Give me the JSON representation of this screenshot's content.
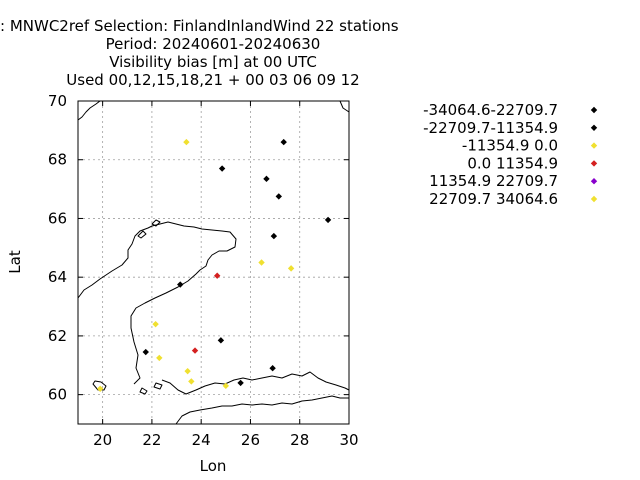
{
  "title_lines": [
    ": MNWC2ref   Selection: FinlandInlandWind      22 stations",
    "Period: 20240601-20240630",
    "Visibility bias [m] at  00 UTC",
    "Used 00,12,15,18,21 + 00 03 06 09 12"
  ],
  "chart_data": {
    "type": "scatter",
    "xlabel": "Lon",
    "ylabel": "Lat",
    "xlim": [
      19,
      30
    ],
    "ylim": [
      59,
      70
    ],
    "xticks": [
      "20",
      "22",
      "24",
      "26",
      "28",
      "30"
    ],
    "xtick_values": [
      20,
      22,
      24,
      26,
      28,
      30
    ],
    "yticks": [
      "60",
      "62",
      "64",
      "66",
      "68",
      "70"
    ],
    "ytick_values": [
      60,
      62,
      64,
      66,
      68,
      70
    ],
    "grid": true,
    "legend_position": "right",
    "series": [
      {
        "name": "-34064.6-22709.7",
        "color": "#000000",
        "points": []
      },
      {
        "name": "-22709.7-11354.9",
        "color": "#000000",
        "points": [
          [
            27.35,
            68.6
          ],
          [
            24.85,
            67.7
          ],
          [
            26.65,
            67.35
          ],
          [
            27.15,
            66.75
          ],
          [
            29.15,
            65.95
          ],
          [
            26.95,
            65.4
          ],
          [
            23.15,
            63.75
          ],
          [
            21.75,
            61.45
          ],
          [
            24.8,
            61.85
          ],
          [
            26.9,
            60.9
          ],
          [
            25.6,
            60.4
          ]
        ]
      },
      {
        "name": "-11354.9 0.0",
        "color": "#f0e030",
        "points": [
          [
            23.4,
            68.6
          ],
          [
            26.45,
            64.5
          ],
          [
            27.65,
            64.3
          ],
          [
            22.15,
            62.4
          ],
          [
            22.3,
            61.25
          ],
          [
            23.45,
            60.8
          ],
          [
            23.6,
            60.45
          ],
          [
            25.0,
            60.3
          ],
          [
            19.9,
            60.2
          ]
        ]
      },
      {
        "name": "0.0 11354.9",
        "color": "#d42020",
        "points": [
          [
            24.65,
            64.05
          ],
          [
            23.75,
            61.5
          ]
        ]
      },
      {
        "name": "11354.9 22709.7",
        "color": "#8800cc",
        "points": []
      },
      {
        "name": "22709.7 34064.6",
        "color": "#f0e030",
        "points": []
      }
    ]
  }
}
